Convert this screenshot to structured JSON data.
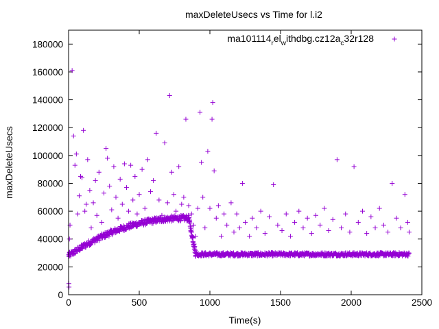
{
  "chart_data": {
    "type": "scatter",
    "title": "maxDeleteUsecs vs Time for l.i2",
    "xlabel": "Time(s)",
    "ylabel": "maxDeleteUsecs",
    "xlim": [
      0,
      2500
    ],
    "ylim": [
      0,
      190000
    ],
    "x_ticks": [
      "0",
      "500",
      "1000",
      "1500",
      "2000",
      "2500"
    ],
    "y_ticks": [
      "0",
      "20000",
      "40000",
      "60000",
      "80000",
      "100000",
      "120000",
      "140000",
      "160000",
      "180000"
    ],
    "legend_position": "top-right",
    "grid": false,
    "marker": "+",
    "series": [
      {
        "name": "ma101114_rel_withdbg.cz12a_c32r128",
        "legend_parts": {
          "p1": "ma101114",
          "sub1": "r",
          "p2": "el",
          "sub2": "w",
          "p3": "ithdbg.cz12a",
          "sub3": "c",
          "p4": "32r128"
        },
        "color": "#9400d3",
        "points": [
          [
            2,
            8000
          ],
          [
            3,
            5500
          ],
          [
            5,
            30000
          ],
          [
            6,
            40000
          ],
          [
            8,
            28000
          ],
          [
            10,
            50000
          ],
          [
            25,
            161000
          ],
          [
            35,
            114000
          ],
          [
            45,
            93000
          ],
          [
            55,
            101000
          ],
          [
            65,
            58000
          ],
          [
            75,
            71000
          ],
          [
            85,
            85000
          ],
          [
            95,
            84000
          ],
          [
            105,
            118000
          ],
          [
            115,
            60000
          ],
          [
            125,
            65000
          ],
          [
            135,
            97000
          ],
          [
            150,
            75000
          ],
          [
            160,
            48000
          ],
          [
            175,
            66000
          ],
          [
            190,
            82000
          ],
          [
            200,
            57000
          ],
          [
            215,
            88000
          ],
          [
            235,
            52000
          ],
          [
            250,
            73000
          ],
          [
            265,
            105000
          ],
          [
            275,
            98000
          ],
          [
            290,
            78000
          ],
          [
            305,
            61000
          ],
          [
            320,
            92000
          ],
          [
            335,
            70000
          ],
          [
            350,
            55000
          ],
          [
            365,
            83000
          ],
          [
            380,
            65000
          ],
          [
            395,
            94000
          ],
          [
            410,
            77000
          ],
          [
            425,
            60000
          ],
          [
            440,
            93000
          ],
          [
            455,
            68000
          ],
          [
            470,
            85000
          ],
          [
            485,
            58000
          ],
          [
            500,
            72000
          ],
          [
            520,
            90000
          ],
          [
            540,
            62000
          ],
          [
            560,
            97000
          ],
          [
            580,
            74000
          ],
          [
            600,
            82000
          ],
          [
            620,
            116000
          ],
          [
            640,
            68000
          ],
          [
            660,
            57000
          ],
          [
            680,
            109000
          ],
          [
            700,
            66000
          ],
          [
            715,
            143000
          ],
          [
            730,
            88000
          ],
          [
            745,
            72000
          ],
          [
            760,
            60000
          ],
          [
            780,
            92000
          ],
          [
            800,
            65000
          ],
          [
            815,
            70000
          ],
          [
            830,
            126000
          ],
          [
            850,
            64000
          ],
          [
            870,
            58000
          ],
          [
            885,
            50000
          ],
          [
            900,
            42000
          ],
          [
            915,
            62000
          ],
          [
            930,
            131000
          ],
          [
            940,
            95000
          ],
          [
            950,
            70000
          ],
          [
            965,
            48000
          ],
          [
            985,
            103000
          ],
          [
            1000,
            62000
          ],
          [
            1015,
            126000
          ],
          [
            1020,
            138000
          ],
          [
            1030,
            89000
          ],
          [
            1045,
            55000
          ],
          [
            1060,
            64000
          ],
          [
            1080,
            42000
          ],
          [
            1100,
            58000
          ],
          [
            1120,
            50000
          ],
          [
            1150,
            66000
          ],
          [
            1170,
            45000
          ],
          [
            1190,
            58000
          ],
          [
            1210,
            48000
          ],
          [
            1230,
            80000
          ],
          [
            1250,
            52000
          ],
          [
            1280,
            42000
          ],
          [
            1300,
            55000
          ],
          [
            1330,
            48000
          ],
          [
            1360,
            60000
          ],
          [
            1390,
            44000
          ],
          [
            1420,
            56000
          ],
          [
            1450,
            79000
          ],
          [
            1480,
            50000
          ],
          [
            1510,
            46000
          ],
          [
            1540,
            58000
          ],
          [
            1570,
            42000
          ],
          [
            1600,
            52000
          ],
          [
            1630,
            60000
          ],
          [
            1660,
            48000
          ],
          [
            1690,
            55000
          ],
          [
            1720,
            44000
          ],
          [
            1750,
            57000
          ],
          [
            1780,
            50000
          ],
          [
            1810,
            62000
          ],
          [
            1840,
            46000
          ],
          [
            1870,
            54000
          ],
          [
            1900,
            97000
          ],
          [
            1930,
            48000
          ],
          [
            1960,
            58000
          ],
          [
            1990,
            45000
          ],
          [
            2020,
            92000
          ],
          [
            2050,
            52000
          ],
          [
            2080,
            60000
          ],
          [
            2110,
            44000
          ],
          [
            2140,
            56000
          ],
          [
            2170,
            48000
          ],
          [
            2200,
            62000
          ],
          [
            2230,
            50000
          ],
          [
            2260,
            45000
          ],
          [
            2290,
            80000
          ],
          [
            2320,
            55000
          ],
          [
            2350,
            48000
          ],
          [
            2380,
            72000
          ],
          [
            2400,
            52000
          ],
          [
            2410,
            45000
          ]
        ]
      }
    ],
    "trend_bands": [
      {
        "x_range": [
          0,
          850
        ],
        "y_start": 28000,
        "y_end": 55000,
        "spread": 4000,
        "n": 340
      },
      {
        "x_range": [
          850,
          900
        ],
        "y_start": 55000,
        "y_end": 29000,
        "spread": 4000,
        "n": 40
      },
      {
        "x_range": [
          900,
          2410
        ],
        "y_start": 29000,
        "y_end": 29000,
        "spread": 2500,
        "n": 600
      }
    ]
  }
}
